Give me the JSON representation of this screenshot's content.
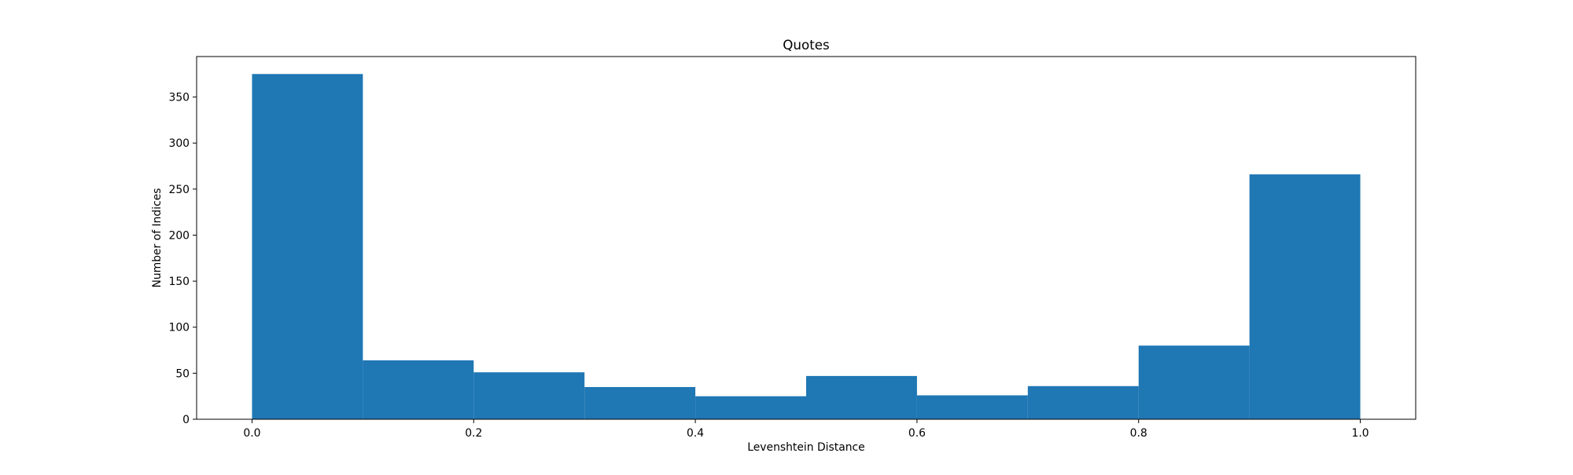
{
  "chart_data": {
    "type": "bar",
    "title": "Quotes",
    "xlabel": "Levenshtein Distance",
    "ylabel": "Number of Indices",
    "bins": [
      {
        "start": 0.0,
        "end": 0.1,
        "value": 375
      },
      {
        "start": 0.1,
        "end": 0.2,
        "value": 64
      },
      {
        "start": 0.2,
        "end": 0.3,
        "value": 51
      },
      {
        "start": 0.3,
        "end": 0.4,
        "value": 35
      },
      {
        "start": 0.4,
        "end": 0.5,
        "value": 25
      },
      {
        "start": 0.5,
        "end": 0.6,
        "value": 47
      },
      {
        "start": 0.6,
        "end": 0.7,
        "value": 26
      },
      {
        "start": 0.7,
        "end": 0.8,
        "value": 36
      },
      {
        "start": 0.8,
        "end": 0.9,
        "value": 80
      },
      {
        "start": 0.9,
        "end": 1.0,
        "value": 266
      }
    ],
    "xlim": [
      -0.05,
      1.05
    ],
    "ylim": [
      0,
      394
    ],
    "xticks": [
      {
        "value": 0.0,
        "label": "0.0"
      },
      {
        "value": 0.2,
        "label": "0.2"
      },
      {
        "value": 0.4,
        "label": "0.4"
      },
      {
        "value": 0.6,
        "label": "0.6"
      },
      {
        "value": 0.8,
        "label": "0.8"
      },
      {
        "value": 1.0,
        "label": "1.0"
      }
    ],
    "yticks": [
      {
        "value": 0,
        "label": "0"
      },
      {
        "value": 50,
        "label": "50"
      },
      {
        "value": 100,
        "label": "100"
      },
      {
        "value": 150,
        "label": "150"
      },
      {
        "value": 200,
        "label": "200"
      },
      {
        "value": 250,
        "label": "250"
      },
      {
        "value": 300,
        "label": "300"
      },
      {
        "value": 350,
        "label": "350"
      }
    ],
    "bar_color": "#1f77b4",
    "grid": false,
    "legend": "none"
  }
}
